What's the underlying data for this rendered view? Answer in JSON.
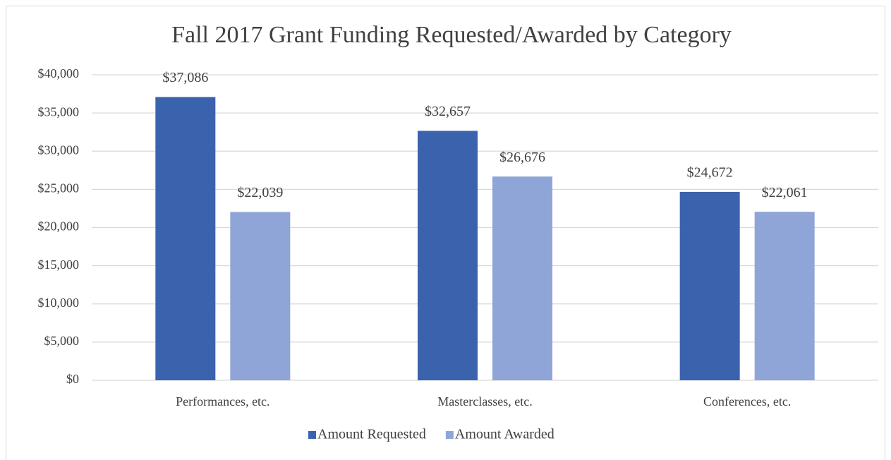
{
  "chart_data": {
    "type": "bar",
    "title": "Fall 2017 Grant Funding Requested/Awarded by Category",
    "categories": [
      "Performances, etc.",
      "Masterclasses, etc.",
      "Conferences, etc."
    ],
    "series": [
      {
        "name": "Amount Requested",
        "color": "#3b63ad",
        "values": [
          37086,
          32657,
          24672
        ],
        "value_labels": [
          "$37,086",
          "$32,657",
          "$24,672"
        ]
      },
      {
        "name": "Amount Awarded",
        "color": "#8fa5d7",
        "values": [
          22039,
          26676,
          22061
        ],
        "value_labels": [
          "$22,039",
          "$26,676",
          "$22,061"
        ]
      }
    ],
    "ylim": [
      0,
      40000
    ],
    "yticks": [
      {
        "value": 0,
        "label": "$0"
      },
      {
        "value": 5000,
        "label": "$5,000"
      },
      {
        "value": 10000,
        "label": "$10,000"
      },
      {
        "value": 15000,
        "label": "$15,000"
      },
      {
        "value": 20000,
        "label": "$20,000"
      },
      {
        "value": 25000,
        "label": "$25,000"
      },
      {
        "value": 30000,
        "label": "$30,000"
      },
      {
        "value": 35000,
        "label": "$35,000"
      },
      {
        "value": 40000,
        "label": "$40,000"
      }
    ],
    "grid": true,
    "legend": "bottom"
  }
}
